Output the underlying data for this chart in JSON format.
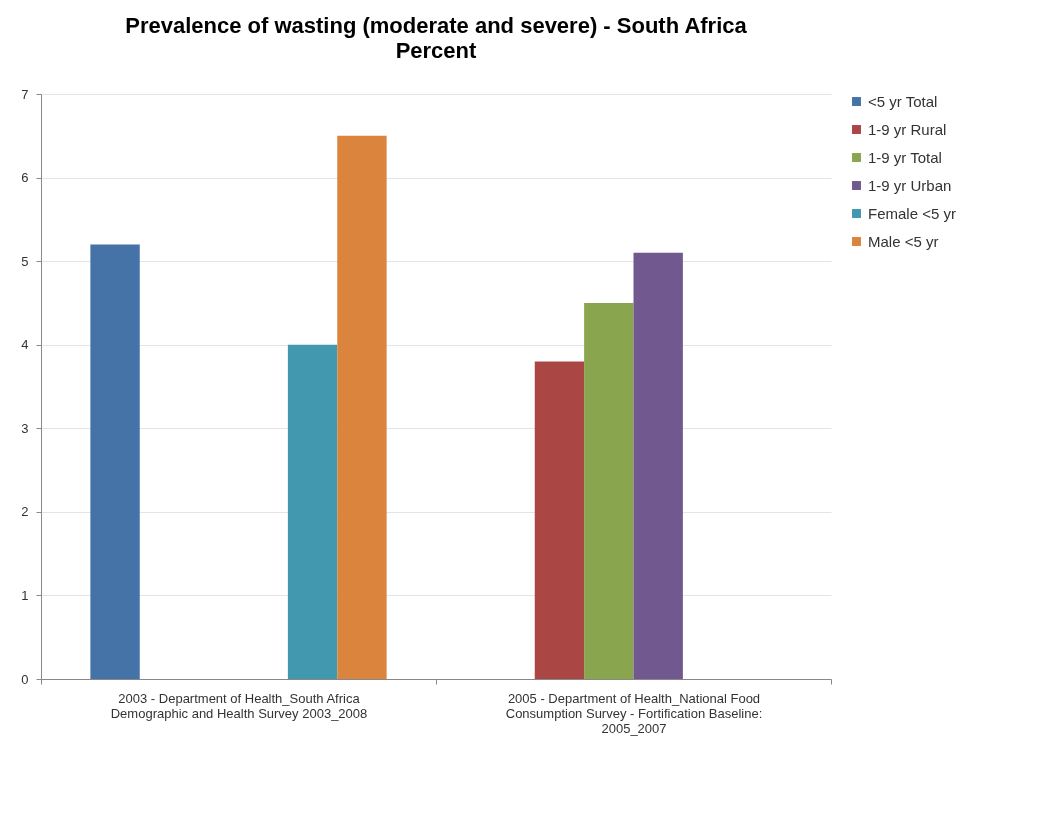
{
  "chart_data": {
    "type": "bar",
    "title": "Prevalence of wasting (moderate and severe) - South Africa",
    "subtitle": "Percent",
    "categories": [
      "2003 - Department of Health_South Africa Demographic and Health Survey 2003_2008",
      "2005 - Department of Health_National Food Consumption Survey - Fortification Baseline: 2005_2007"
    ],
    "series": [
      {
        "name": "<5 yr Total",
        "color": "#4572a7",
        "values": [
          5.2,
          null
        ]
      },
      {
        "name": "1-9 yr Rural",
        "color": "#aa4643",
        "values": [
          null,
          3.8
        ]
      },
      {
        "name": "1-9 yr Total",
        "color": "#89a54e",
        "values": [
          null,
          4.5
        ]
      },
      {
        "name": "1-9 yr Urban",
        "color": "#71588f",
        "values": [
          null,
          5.1
        ]
      },
      {
        "name": "Female <5 yr",
        "color": "#4198af",
        "values": [
          4.0,
          null
        ]
      },
      {
        "name": "Male <5 yr",
        "color": "#db843d",
        "values": [
          6.5,
          null
        ]
      }
    ],
    "ylim": [
      0,
      7
    ],
    "yticks": [
      0,
      1,
      2,
      3,
      4,
      5,
      6,
      7
    ],
    "grid": "y",
    "legend": "right"
  }
}
